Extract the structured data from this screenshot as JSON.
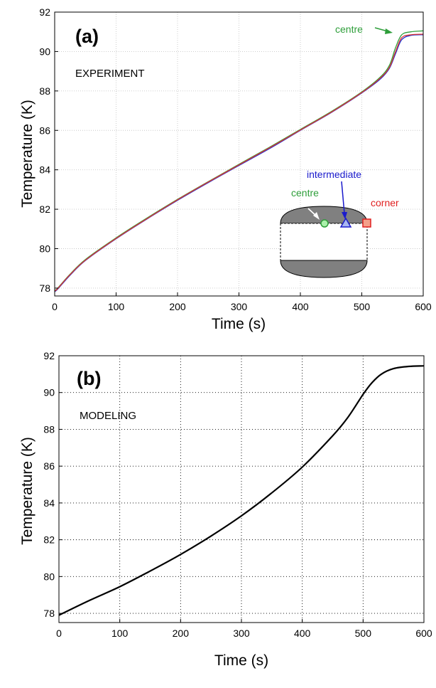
{
  "chart_data": [
    {
      "type": "line",
      "panel_label": "(a)",
      "annotation": "EXPERIMENT",
      "xlabel": "Time (s)",
      "ylabel": "Temperature (K)",
      "xlim": [
        0,
        600
      ],
      "ylim": [
        77.6,
        92
      ],
      "x_ticks": [
        0,
        100,
        200,
        300,
        400,
        500,
        600
      ],
      "y_ticks": [
        78,
        80,
        82,
        84,
        86,
        88,
        90,
        92
      ],
      "grid": true,
      "series": [
        {
          "color": "#2e9e3a",
          "points": [
            [
              0,
              77.88
            ],
            [
              5,
              78.0
            ],
            [
              25,
              78.7
            ],
            [
              50,
              79.45
            ],
            [
              100,
              80.55
            ],
            [
              150,
              81.55
            ],
            [
              200,
              82.5
            ],
            [
              250,
              83.4
            ],
            [
              300,
              84.28
            ],
            [
              350,
              85.15
            ],
            [
              400,
              86.05
            ],
            [
              450,
              86.95
            ],
            [
              500,
              87.95
            ],
            [
              530,
              88.7
            ],
            [
              545,
              89.3
            ],
            [
              555,
              90.2
            ],
            [
              565,
              90.85
            ],
            [
              580,
              91.0
            ],
            [
              600,
              91.05
            ]
          ]
        },
        {
          "color": "#2233cc",
          "points": [
            [
              0,
              77.82
            ],
            [
              5,
              77.95
            ],
            [
              25,
              78.65
            ],
            [
              50,
              79.4
            ],
            [
              100,
              80.5
            ],
            [
              150,
              81.5
            ],
            [
              200,
              82.45
            ],
            [
              250,
              83.35
            ],
            [
              300,
              84.22
            ],
            [
              350,
              85.08
            ],
            [
              400,
              86.0
            ],
            [
              450,
              86.9
            ],
            [
              500,
              87.9
            ],
            [
              530,
              88.6
            ],
            [
              545,
              89.15
            ],
            [
              555,
              89.9
            ],
            [
              565,
              90.6
            ],
            [
              580,
              90.82
            ],
            [
              600,
              90.85
            ]
          ]
        },
        {
          "color": "#dd3333",
          "points": [
            [
              0,
              77.85
            ],
            [
              5,
              77.98
            ],
            [
              25,
              78.68
            ],
            [
              50,
              79.42
            ],
            [
              100,
              80.52
            ],
            [
              150,
              81.52
            ],
            [
              200,
              82.48
            ],
            [
              250,
              83.38
            ],
            [
              300,
              84.25
            ],
            [
              350,
              85.12
            ],
            [
              400,
              86.02
            ],
            [
              450,
              86.92
            ],
            [
              500,
              87.92
            ],
            [
              530,
              88.65
            ],
            [
              545,
              89.2
            ],
            [
              555,
              90.0
            ],
            [
              565,
              90.7
            ],
            [
              580,
              90.85
            ],
            [
              600,
              90.88
            ]
          ]
        }
      ],
      "labels": {
        "centre_top": "centre",
        "intermediate": "intermediate",
        "centre_inset": "centre",
        "corner": "corner"
      },
      "label_colors": {
        "centre": "#2e9e3a",
        "intermediate": "#1a1acc",
        "corner": "#e02020"
      }
    },
    {
      "type": "line",
      "panel_label": "(b)",
      "annotation": "MODELING",
      "xlabel": "Time (s)",
      "ylabel": "Temperature (K)",
      "xlim": [
        0,
        600
      ],
      "ylim": [
        77.5,
        92
      ],
      "x_ticks": [
        0,
        100,
        200,
        300,
        400,
        500,
        600
      ],
      "y_ticks": [
        78,
        80,
        82,
        84,
        86,
        88,
        90,
        92
      ],
      "grid": true,
      "series": [
        {
          "color": "#000000",
          "points": [
            [
              0,
              77.9
            ],
            [
              50,
              78.7
            ],
            [
              100,
              79.45
            ],
            [
              150,
              80.3
            ],
            [
              200,
              81.2
            ],
            [
              250,
              82.2
            ],
            [
              300,
              83.3
            ],
            [
              350,
              84.55
            ],
            [
              400,
              85.95
            ],
            [
              450,
              87.65
            ],
            [
              475,
              88.65
            ],
            [
              500,
              89.9
            ],
            [
              515,
              90.55
            ],
            [
              530,
              91.0
            ],
            [
              550,
              91.3
            ],
            [
              575,
              91.42
            ],
            [
              600,
              91.45
            ]
          ]
        }
      ]
    }
  ]
}
